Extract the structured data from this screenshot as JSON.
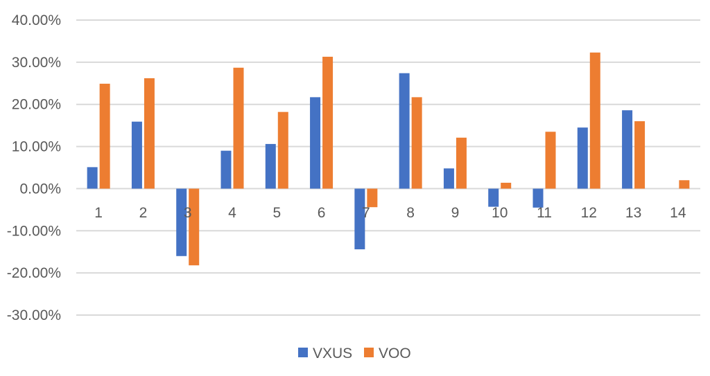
{
  "chart_data": {
    "type": "bar",
    "categories": [
      "1",
      "2",
      "3",
      "4",
      "5",
      "6",
      "7",
      "8",
      "9",
      "10",
      "11",
      "12",
      "13",
      "14"
    ],
    "series": [
      {
        "name": "VXUS",
        "color": "#4472C4",
        "values": [
          5.1,
          15.9,
          -16.0,
          9.0,
          10.6,
          21.7,
          -14.4,
          27.4,
          4.8,
          -4.3,
          -4.5,
          14.5,
          18.6,
          0.0
        ]
      },
      {
        "name": "VOO",
        "color": "#ED7D31",
        "values": [
          24.9,
          26.2,
          -18.2,
          28.7,
          18.2,
          31.3,
          -4.4,
          21.7,
          12.1,
          1.4,
          13.5,
          32.3,
          16.0,
          2.0
        ]
      }
    ],
    "ylim": [
      -30,
      40
    ],
    "ytick_step": 10,
    "ytick_labels": [
      "40.00%",
      "30.00%",
      "20.00%",
      "10.00%",
      "0.00%",
      "-10.00%",
      "-20.00%",
      "-30.00%"
    ],
    "grid": true,
    "legend_position": "bottom",
    "title": "",
    "xlabel": "",
    "ylabel": ""
  }
}
